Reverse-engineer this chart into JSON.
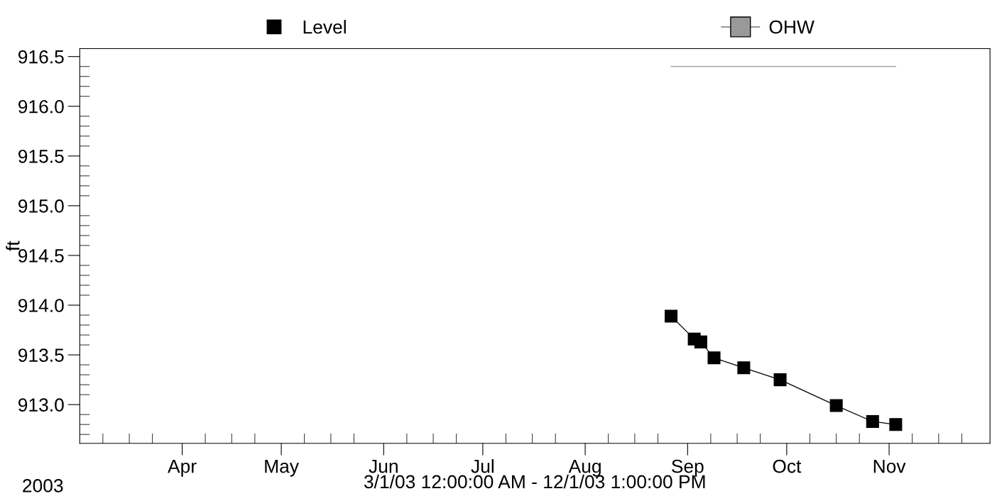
{
  "chart_data": {
    "type": "line",
    "xlabel": "3/1/03 12:00:00 AM - 12/1/03 1:00:00 PM",
    "ylabel": "ft",
    "annotations": [
      "2003"
    ],
    "legend": "top",
    "grid": false,
    "marker": "square",
    "line_style": "solid",
    "xlim": [
      "2003-03-01",
      "2003-12-01T13:00"
    ],
    "xticks": [
      {
        "value": "2003-03-08",
        "label": null
      },
      {
        "value": "2003-03-16",
        "label": null
      },
      {
        "value": "2003-03-23",
        "label": null
      },
      {
        "value": "2003-04-01",
        "label": "Apr"
      },
      {
        "value": "2003-04-08",
        "label": null
      },
      {
        "value": "2003-04-16",
        "label": null
      },
      {
        "value": "2003-04-23",
        "label": null
      },
      {
        "value": "2003-05-01",
        "label": "May"
      },
      {
        "value": "2003-05-08",
        "label": null
      },
      {
        "value": "2003-05-16",
        "label": null
      },
      {
        "value": "2003-05-23",
        "label": null
      },
      {
        "value": "2003-06-01",
        "label": "Jun"
      },
      {
        "value": "2003-06-08",
        "label": null
      },
      {
        "value": "2003-06-16",
        "label": null
      },
      {
        "value": "2003-06-23",
        "label": null
      },
      {
        "value": "2003-07-01",
        "label": "Jul"
      },
      {
        "value": "2003-07-08",
        "label": null
      },
      {
        "value": "2003-07-16",
        "label": null
      },
      {
        "value": "2003-07-23",
        "label": null
      },
      {
        "value": "2003-08-01",
        "label": "Aug"
      },
      {
        "value": "2003-08-08",
        "label": null
      },
      {
        "value": "2003-08-16",
        "label": null
      },
      {
        "value": "2003-08-23",
        "label": null
      },
      {
        "value": "2003-09-01",
        "label": "Sep"
      },
      {
        "value": "2003-09-08",
        "label": null
      },
      {
        "value": "2003-09-16",
        "label": null
      },
      {
        "value": "2003-09-23",
        "label": null
      },
      {
        "value": "2003-10-01",
        "label": "Oct"
      },
      {
        "value": "2003-10-08",
        "label": null
      },
      {
        "value": "2003-10-16",
        "label": null
      },
      {
        "value": "2003-10-23",
        "label": null
      },
      {
        "value": "2003-11-01",
        "label": "Nov"
      },
      {
        "value": "2003-11-08",
        "label": null
      },
      {
        "value": "2003-11-16",
        "label": null
      },
      {
        "value": "2003-11-23",
        "label": null
      }
    ],
    "ylim": [
      912.61,
      916.58
    ],
    "yticks": [
      {
        "value": 912.7,
        "label": null
      },
      {
        "value": 912.8,
        "label": null
      },
      {
        "value": 912.9,
        "label": null
      },
      {
        "value": 913.0,
        "label": "913.0"
      },
      {
        "value": 913.1,
        "label": null
      },
      {
        "value": 913.2,
        "label": null
      },
      {
        "value": 913.3,
        "label": null
      },
      {
        "value": 913.4,
        "label": null
      },
      {
        "value": 913.5,
        "label": "913.5"
      },
      {
        "value": 913.6,
        "label": null
      },
      {
        "value": 913.7,
        "label": null
      },
      {
        "value": 913.8,
        "label": null
      },
      {
        "value": 913.9,
        "label": null
      },
      {
        "value": 914.0,
        "label": "914.0"
      },
      {
        "value": 914.1,
        "label": null
      },
      {
        "value": 914.2,
        "label": null
      },
      {
        "value": 914.3,
        "label": null
      },
      {
        "value": 914.4,
        "label": null
      },
      {
        "value": 914.5,
        "label": "914.5"
      },
      {
        "value": 914.6,
        "label": null
      },
      {
        "value": 914.7,
        "label": null
      },
      {
        "value": 914.8,
        "label": null
      },
      {
        "value": 914.9,
        "label": null
      },
      {
        "value": 915.0,
        "label": "915.0"
      },
      {
        "value": 915.1,
        "label": null
      },
      {
        "value": 915.2,
        "label": null
      },
      {
        "value": 915.3,
        "label": null
      },
      {
        "value": 915.4,
        "label": null
      },
      {
        "value": 915.5,
        "label": "915.5"
      },
      {
        "value": 915.6,
        "label": null
      },
      {
        "value": 915.7,
        "label": null
      },
      {
        "value": 915.8,
        "label": null
      },
      {
        "value": 915.9,
        "label": null
      },
      {
        "value": 916.0,
        "label": "916.0"
      },
      {
        "value": 916.1,
        "label": null
      },
      {
        "value": 916.2,
        "label": null
      },
      {
        "value": 916.3,
        "label": null
      },
      {
        "value": 916.4,
        "label": null
      },
      {
        "value": 916.5,
        "label": "916.5"
      }
    ],
    "series": [
      {
        "name": "Level",
        "color": "#000000",
        "x": [
          "2003-08-27",
          "2003-09-03",
          "2003-09-05",
          "2003-09-09",
          "2003-09-18",
          "2003-09-29",
          "2003-10-16",
          "2003-10-27",
          "2003-11-03"
        ],
        "values": [
          913.89,
          913.66,
          913.63,
          913.47,
          913.37,
          913.25,
          912.99,
          912.83,
          912.8
        ]
      },
      {
        "name": "OHW",
        "color": "#999999",
        "marker": "none",
        "x": [
          "2003-08-27",
          "2003-11-03"
        ],
        "values": [
          916.4,
          916.4
        ]
      }
    ]
  }
}
